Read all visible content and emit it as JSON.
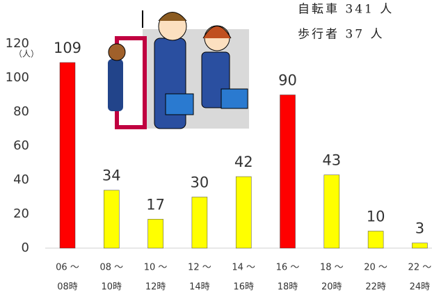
{
  "chart_data": {
    "type": "bar",
    "annotations": [
      "自転車 341 人",
      "歩行者 37 人"
    ],
    "y_unit": "（人）",
    "categories": [
      [
        "06 ～",
        "08時"
      ],
      [
        "08 ～",
        "10時"
      ],
      [
        "10 ～",
        "12時"
      ],
      [
        "12 ～",
        "14時"
      ],
      [
        "14 ～",
        "16時"
      ],
      [
        "16 ～",
        "18時"
      ],
      [
        "18 ～",
        "20時"
      ],
      [
        "20 ～",
        "22時"
      ],
      [
        "22 ～",
        "24時"
      ]
    ],
    "values": [
      109,
      34,
      17,
      30,
      42,
      90,
      43,
      10,
      3
    ],
    "colors": [
      "#ff0000",
      "#ffff00",
      "#ffff00",
      "#ffff00",
      "#ffff00",
      "#ff0000",
      "#ffff00",
      "#ffff00",
      "#ffff00"
    ],
    "ylim": [
      0,
      120
    ],
    "yticks": [
      0,
      20,
      40,
      60,
      80,
      100,
      120
    ],
    "grid": false
  }
}
